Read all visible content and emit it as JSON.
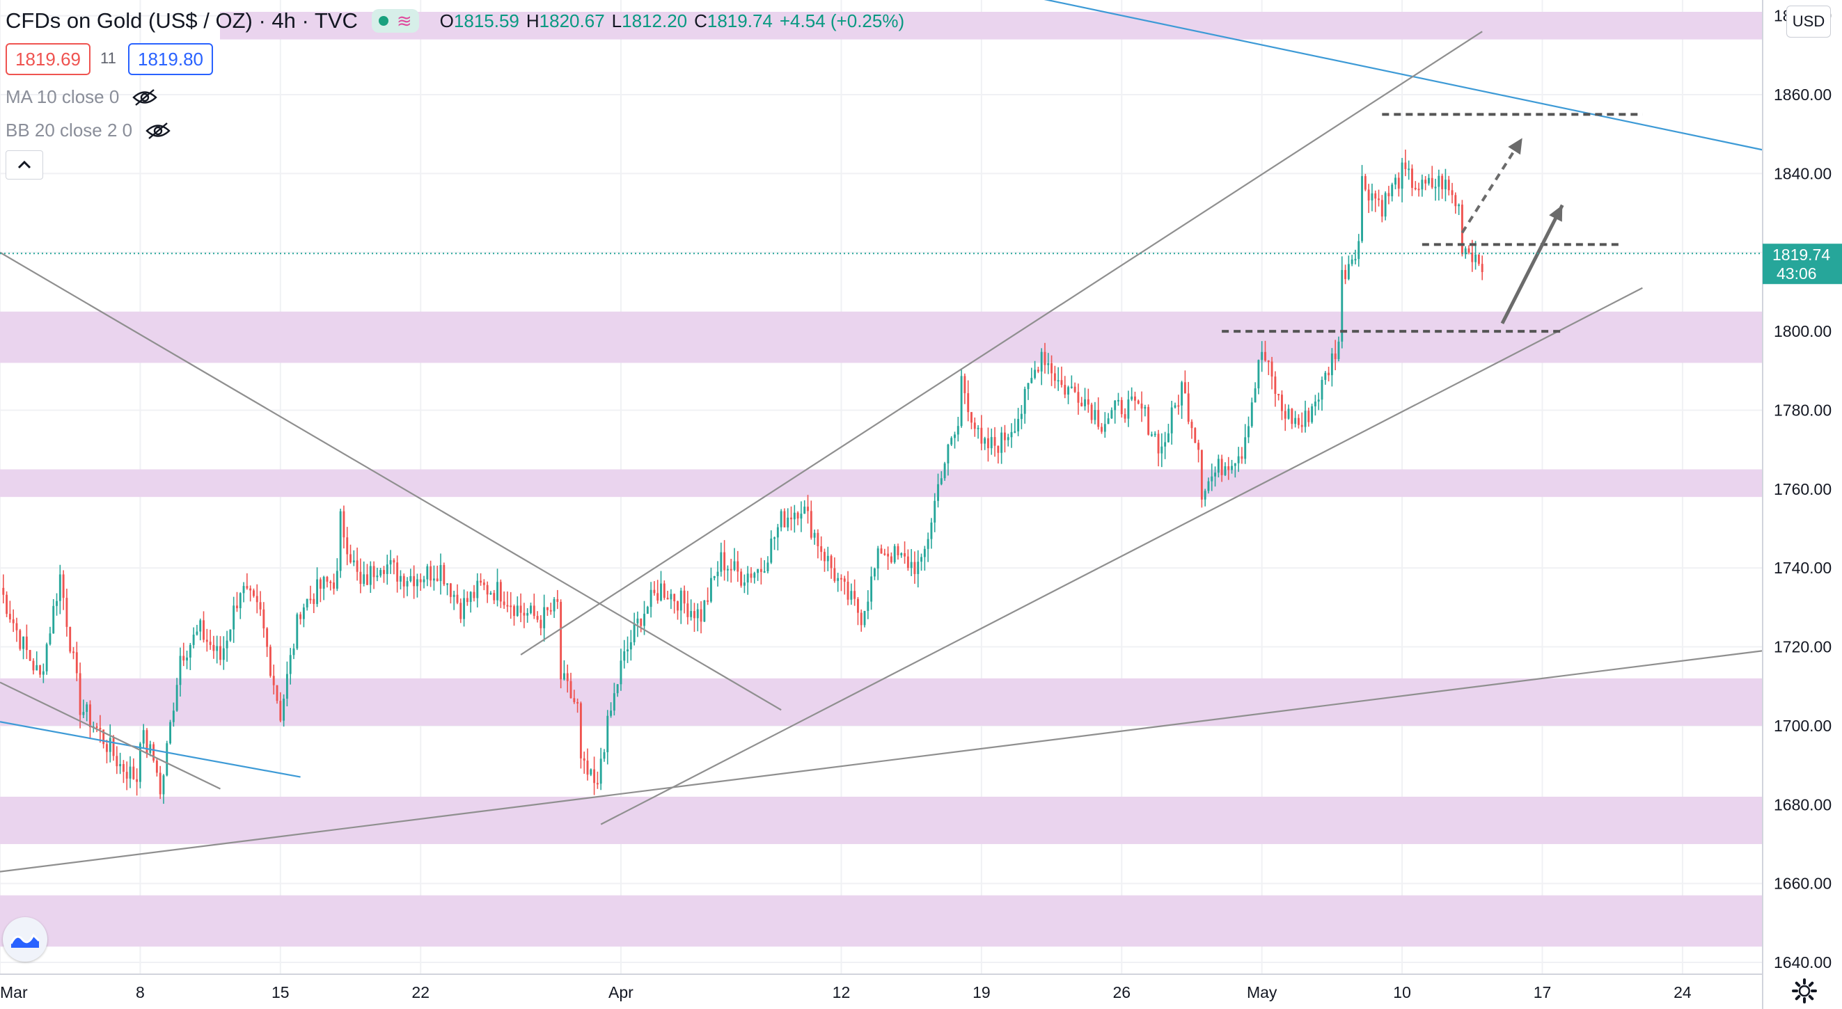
{
  "header": {
    "title": "CFDs on Gold (US$ / OZ) · 4h · TVC",
    "ohlc": {
      "o_label": "O",
      "o": "1815.59",
      "h_label": "H",
      "h": "1820.67",
      "l_label": "L",
      "l": "1812.20",
      "c_label": "C",
      "c": "1819.74",
      "change": "+4.54 (+0.25%)"
    }
  },
  "bid": "1819.69",
  "spread": "11",
  "ask": "1819.80",
  "indicators": [
    {
      "label": "MA 10 close 0"
    },
    {
      "label": "BB 20 close 2 0"
    }
  ],
  "currency_button": "USD",
  "last_price_label": "1819.74",
  "countdown_label": "43:06",
  "icons": [
    "visibility-off-icon",
    "chevron-up-icon",
    "gear-icon",
    "tradingview-logo-icon"
  ],
  "colors": {
    "up": "#26a69a",
    "down": "#ef5350",
    "zone": "#ead4ee",
    "trend_blue": "#3d9ad6",
    "trend_gray": "#8f8f8f",
    "last_price": "#26a69a"
  },
  "chart_data": {
    "type": "candlestick",
    "y_ticks": [
      "1880.00",
      "1860.00",
      "1840.00",
      "1820.00",
      "1800.00",
      "1780.00",
      "1760.00",
      "1740.00",
      "1720.00",
      "1700.00",
      "1680.00",
      "1660.00",
      "1640.00"
    ],
    "ylim": [
      1637,
      1884
    ],
    "x_ticks": [
      {
        "label": "Mar",
        "date": "2021-03-01"
      },
      {
        "label": "8",
        "date": "2021-03-08"
      },
      {
        "label": "15",
        "date": "2021-03-15"
      },
      {
        "label": "22",
        "date": "2021-03-22"
      },
      {
        "label": "Apr",
        "date": "2021-04-01"
      },
      {
        "label": "12",
        "date": "2021-04-12"
      },
      {
        "label": "19",
        "date": "2021-04-19"
      },
      {
        "label": "26",
        "date": "2021-04-26"
      },
      {
        "label": "May",
        "date": "2021-05-03"
      },
      {
        "label": "10",
        "date": "2021-05-10"
      },
      {
        "label": "17",
        "date": "2021-05-17"
      },
      {
        "label": "24",
        "date": "2021-05-24"
      }
    ],
    "xlim": [
      "2021-03-01",
      "2021-05-28"
    ],
    "zones": [
      [
        1874,
        1881
      ],
      [
        1792,
        1805
      ],
      [
        1758,
        1765
      ],
      [
        1700,
        1712
      ],
      [
        1670,
        1682
      ],
      [
        1644,
        1657
      ]
    ],
    "trendlines": [
      {
        "color": "blue",
        "from": [
          "2021-03-01",
          1701
        ],
        "to": [
          "2021-03-16",
          1687
        ]
      },
      {
        "color": "blue",
        "from": [
          "2021-03-27",
          1912
        ],
        "to": [
          "2021-05-28",
          1846
        ]
      },
      {
        "color": "gray",
        "from": [
          "2021-03-01",
          1711
        ],
        "to": [
          "2021-03-12",
          1684
        ]
      },
      {
        "color": "gray",
        "from": [
          "2021-03-01",
          1820
        ],
        "to": [
          "2021-04-09",
          1704
        ]
      },
      {
        "color": "gray",
        "from": [
          "2021-03-27",
          1718
        ],
        "to": [
          "2021-05-14",
          1876
        ]
      },
      {
        "color": "gray",
        "from": [
          "2021-03-31",
          1675
        ],
        "to": [
          "2021-05-22",
          1811
        ]
      },
      {
        "color": "gray",
        "from": [
          "2021-03-01",
          1663
        ],
        "to": [
          "2021-05-28",
          1719
        ]
      }
    ],
    "levels": [
      {
        "price": 1855,
        "from": "2021-05-09",
        "to": "2021-05-22"
      },
      {
        "price": 1822,
        "from": "2021-05-11",
        "to": "2021-05-21"
      },
      {
        "price": 1800,
        "from": "2021-05-01",
        "to": "2021-05-18"
      }
    ],
    "arrows": [
      {
        "style": "dashed",
        "from": [
          "2021-05-13",
          1825
        ],
        "to": [
          "2021-05-16",
          1849
        ]
      },
      {
        "style": "solid",
        "from": [
          "2021-05-15",
          1802
        ],
        "to": [
          "2021-05-18",
          1832
        ]
      }
    ],
    "keypoints": [
      [
        "2021-03-01",
        1765
      ],
      [
        "2021-03-01",
        1735
      ],
      [
        "2021-03-02",
        1722
      ],
      [
        "2021-03-03",
        1712
      ],
      [
        "2021-03-04",
        1738
      ],
      [
        "2021-03-05",
        1705
      ],
      [
        "2021-03-06",
        1698
      ],
      [
        "2021-03-07",
        1690
      ],
      [
        "2021-03-08",
        1686
      ],
      [
        "2021-03-08",
        1698
      ],
      [
        "2021-03-09",
        1688
      ],
      [
        "2021-03-09",
        1682
      ],
      [
        "2021-03-10",
        1718
      ],
      [
        "2021-03-11",
        1724
      ],
      [
        "2021-03-12",
        1717
      ],
      [
        "2021-03-13",
        1735
      ],
      [
        "2021-03-14",
        1728
      ],
      [
        "2021-03-15",
        1703
      ],
      [
        "2021-03-16",
        1730
      ],
      [
        "2021-03-17",
        1735
      ],
      [
        "2021-03-18",
        1738
      ],
      [
        "2021-03-18",
        1752
      ],
      [
        "2021-03-19",
        1735
      ],
      [
        "2021-03-20",
        1742
      ],
      [
        "2021-03-21",
        1738
      ],
      [
        "2021-03-22",
        1738
      ],
      [
        "2021-03-23",
        1740
      ],
      [
        "2021-03-24",
        1730
      ],
      [
        "2021-03-25",
        1735
      ],
      [
        "2021-03-26",
        1734
      ],
      [
        "2021-03-27",
        1729
      ],
      [
        "2021-03-28",
        1727
      ],
      [
        "2021-03-29",
        1731
      ],
      [
        "2021-03-29",
        1712
      ],
      [
        "2021-03-30",
        1703
      ],
      [
        "2021-03-30",
        1690
      ],
      [
        "2021-03-31",
        1682
      ],
      [
        "2021-03-31",
        1692
      ],
      [
        "2021-04-01",
        1715
      ],
      [
        "2021-04-02",
        1728
      ],
      [
        "2021-04-03",
        1735
      ],
      [
        "2021-04-05",
        1728
      ],
      [
        "2021-04-06",
        1742
      ],
      [
        "2021-04-07",
        1738
      ],
      [
        "2021-04-08",
        1740
      ],
      [
        "2021-04-09",
        1752
      ],
      [
        "2021-04-10",
        1756
      ],
      [
        "2021-04-11",
        1745
      ],
      [
        "2021-04-12",
        1735
      ],
      [
        "2021-04-13",
        1728
      ],
      [
        "2021-04-14",
        1745
      ],
      [
        "2021-04-15",
        1742
      ],
      [
        "2021-04-16",
        1740
      ],
      [
        "2021-04-17",
        1765
      ],
      [
        "2021-04-18",
        1778
      ],
      [
        "2021-04-18",
        1788
      ],
      [
        "2021-04-19",
        1770
      ],
      [
        "2021-04-20",
        1772
      ],
      [
        "2021-04-21",
        1780
      ],
      [
        "2021-04-22",
        1795
      ],
      [
        "2021-04-23",
        1786
      ],
      [
        "2021-04-24",
        1784
      ],
      [
        "2021-04-25",
        1777
      ],
      [
        "2021-04-26",
        1781
      ],
      [
        "2021-04-27",
        1780
      ],
      [
        "2021-04-28",
        1770
      ],
      [
        "2021-04-29",
        1786
      ],
      [
        "2021-04-30",
        1768
      ],
      [
        "2021-04-30",
        1760
      ],
      [
        "2021-05-01",
        1766
      ],
      [
        "2021-05-02",
        1770
      ],
      [
        "2021-05-03",
        1795
      ],
      [
        "2021-05-04",
        1780
      ],
      [
        "2021-05-05",
        1776
      ],
      [
        "2021-05-06",
        1786
      ],
      [
        "2021-05-07",
        1800
      ],
      [
        "2021-05-07",
        1814
      ],
      [
        "2021-05-08",
        1825
      ],
      [
        "2021-05-08",
        1838
      ],
      [
        "2021-05-09",
        1832
      ],
      [
        "2021-05-10",
        1840
      ],
      [
        "2021-05-11",
        1836
      ],
      [
        "2021-05-12",
        1838
      ],
      [
        "2021-05-13",
        1830
      ],
      [
        "2021-05-13",
        1822
      ],
      [
        "2021-05-14",
        1818
      ],
      [
        "2021-05-14",
        1820
      ]
    ]
  }
}
